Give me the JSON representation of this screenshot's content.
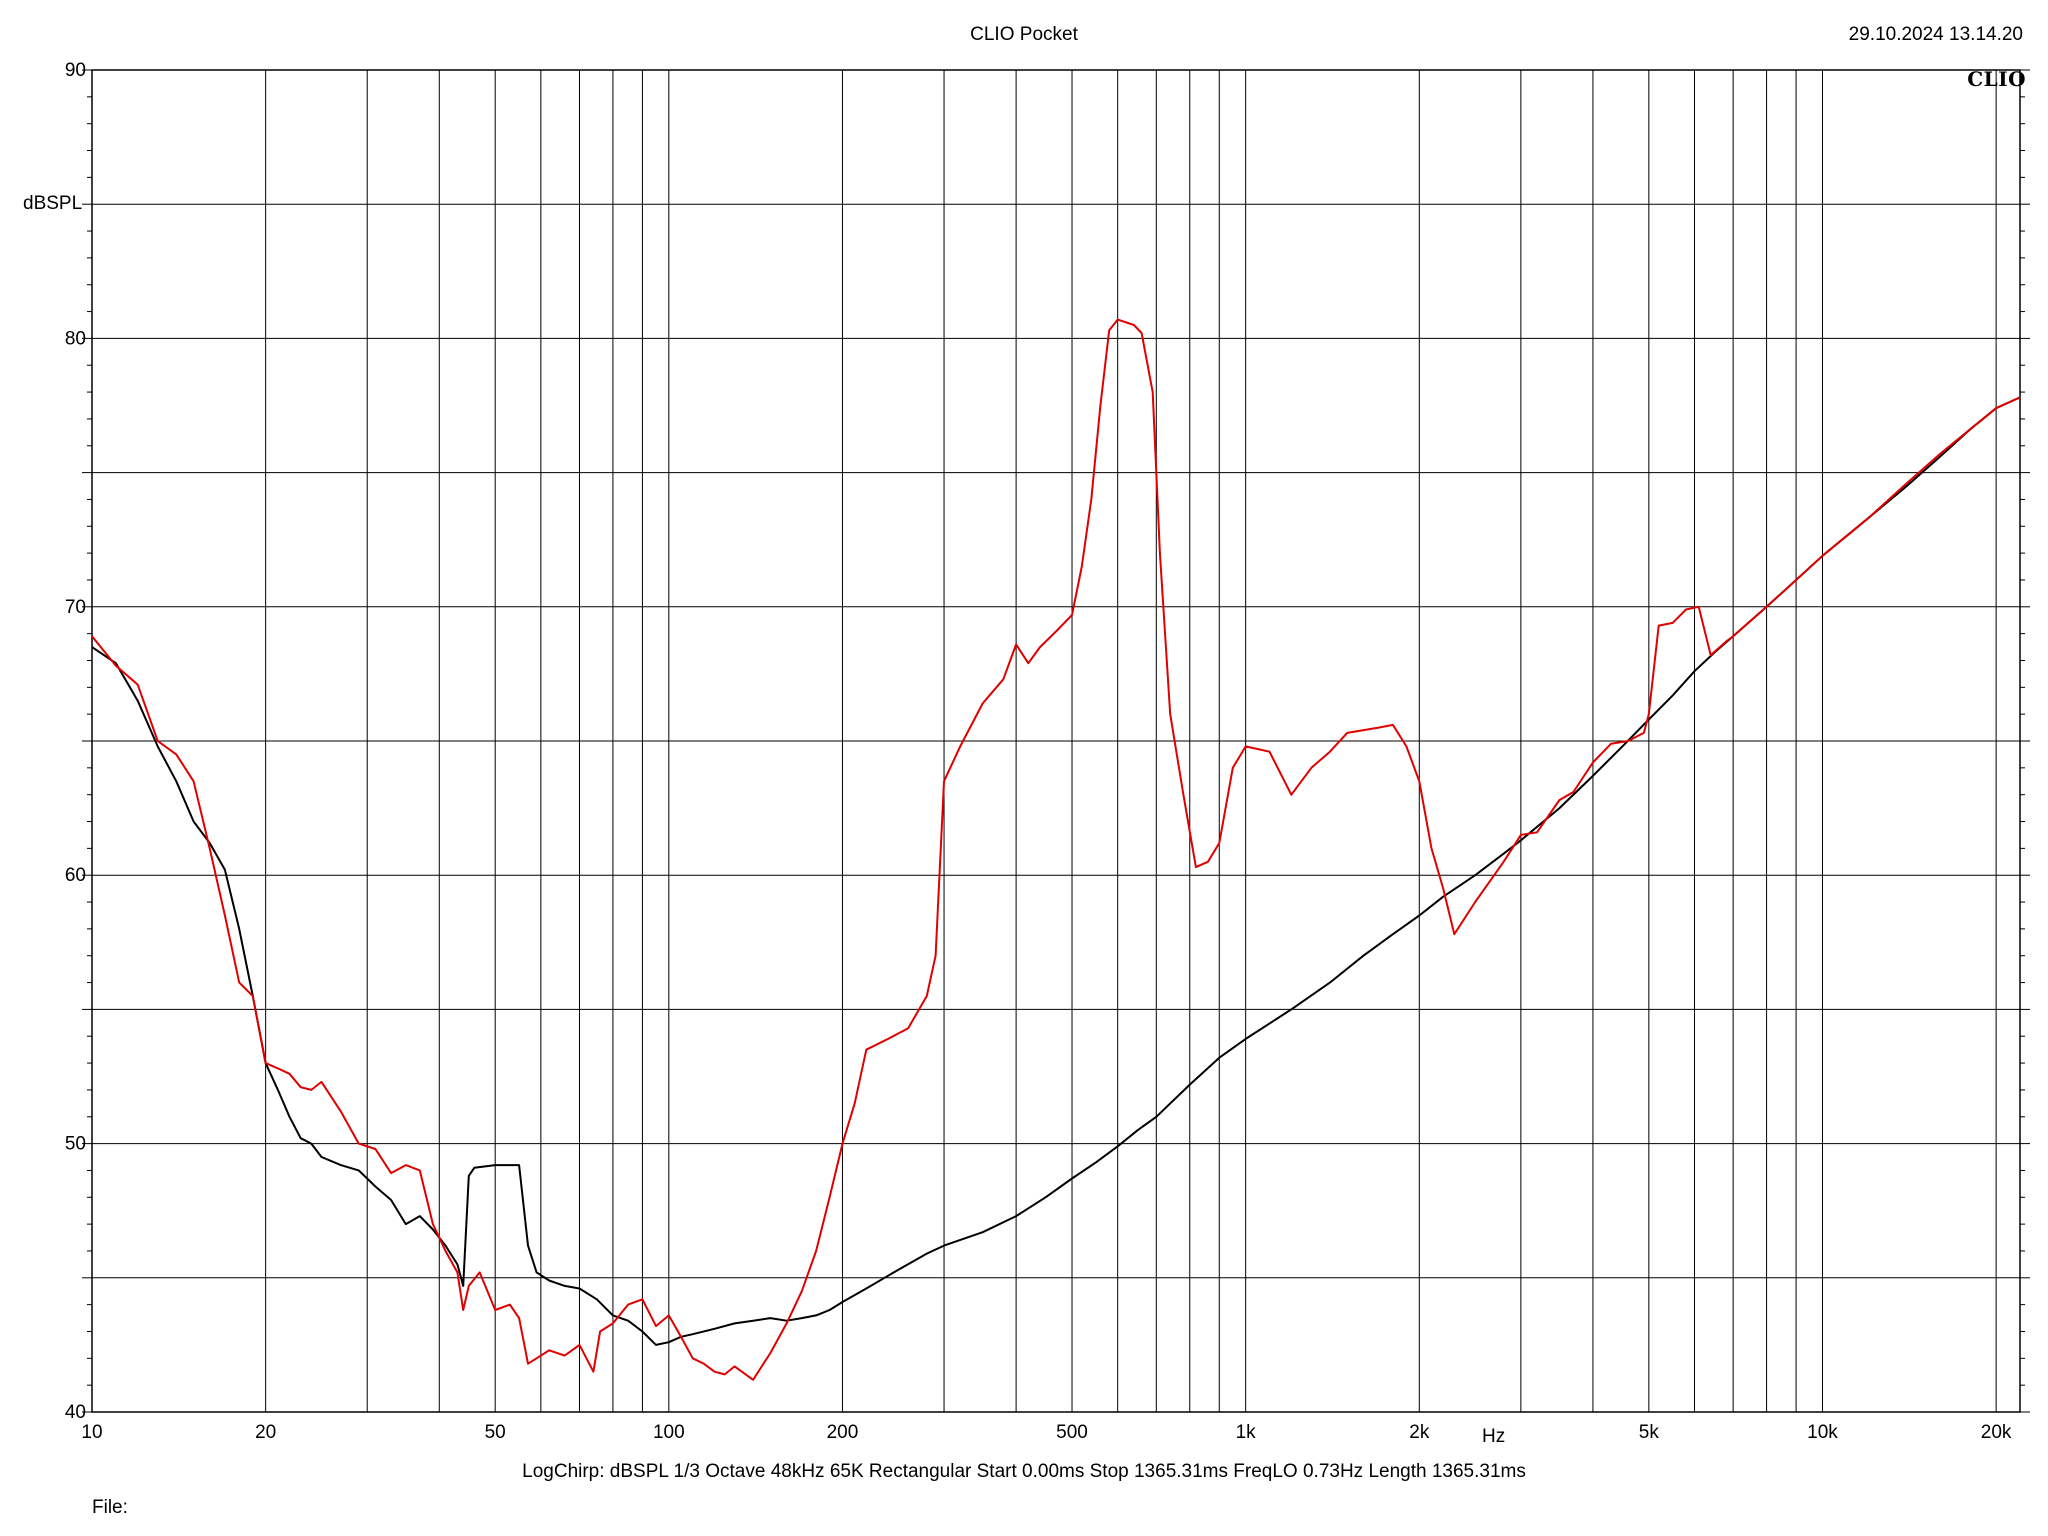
{
  "header": {
    "title": "CLIO Pocket",
    "datetime": "29.10.2024 13.14.20",
    "logo": "CLIO"
  },
  "footer": {
    "settings": "LogChirp:   dBSPL   1/3 Octave   48kHz   65K   Rectangular   Start 0.00ms    Stop 1365.31ms    FreqLO 0.73Hz    Length 1365.31ms",
    "file_label": "File:"
  },
  "chart_data": {
    "type": "line",
    "title": "CLIO Pocket",
    "xlabel": "Hz",
    "ylabel": "dBSPL",
    "x_scale": "log",
    "xlim": [
      10,
      22000
    ],
    "ylim": [
      40,
      90
    ],
    "x_ticks": [
      {
        "value": 10,
        "label": "10"
      },
      {
        "value": 20,
        "label": "20"
      },
      {
        "value": 50,
        "label": "50"
      },
      {
        "value": 100,
        "label": "100"
      },
      {
        "value": 200,
        "label": "200"
      },
      {
        "value": 500,
        "label": "500"
      },
      {
        "value": 1000,
        "label": "1k"
      },
      {
        "value": 2000,
        "label": "2k"
      },
      {
        "value": 5000,
        "label": "5k"
      },
      {
        "value": 10000,
        "label": "10k"
      },
      {
        "value": 20000,
        "label": "20k"
      }
    ],
    "y_ticks": [
      {
        "value": 40,
        "label": "40"
      },
      {
        "value": 50,
        "label": "50"
      },
      {
        "value": 60,
        "label": "60"
      },
      {
        "value": 70,
        "label": "70"
      },
      {
        "value": 80,
        "label": "80"
      },
      {
        "value": 90,
        "label": "90"
      }
    ],
    "grid": true,
    "series": [
      {
        "color": "#000000",
        "points": [
          [
            10,
            68.5
          ],
          [
            11,
            67.9
          ],
          [
            12,
            66.5
          ],
          [
            13,
            64.8
          ],
          [
            14,
            63.5
          ],
          [
            15,
            62.0
          ],
          [
            16,
            61.2
          ],
          [
            17,
            60.2
          ],
          [
            18,
            58.0
          ],
          [
            19,
            55.5
          ],
          [
            20,
            53.0
          ],
          [
            21,
            52.0
          ],
          [
            22,
            51.0
          ],
          [
            23,
            50.2
          ],
          [
            24,
            50.0
          ],
          [
            25,
            49.5
          ],
          [
            27,
            49.2
          ],
          [
            29,
            49.0
          ],
          [
            31,
            48.4
          ],
          [
            33,
            47.9
          ],
          [
            35,
            47.0
          ],
          [
            37,
            47.3
          ],
          [
            39,
            46.8
          ],
          [
            41,
            46.2
          ],
          [
            43,
            45.5
          ],
          [
            44,
            44.7
          ],
          [
            45,
            48.8
          ],
          [
            46,
            49.1
          ],
          [
            50,
            49.2
          ],
          [
            55,
            49.2
          ],
          [
            57,
            46.2
          ],
          [
            59,
            45.2
          ],
          [
            62,
            44.9
          ],
          [
            66,
            44.7
          ],
          [
            70,
            44.6
          ],
          [
            75,
            44.2
          ],
          [
            80,
            43.6
          ],
          [
            85,
            43.4
          ],
          [
            90,
            43.0
          ],
          [
            95,
            42.5
          ],
          [
            100,
            42.6
          ],
          [
            105,
            42.8
          ],
          [
            110,
            42.9
          ],
          [
            120,
            43.1
          ],
          [
            130,
            43.3
          ],
          [
            140,
            43.4
          ],
          [
            150,
            43.5
          ],
          [
            160,
            43.4
          ],
          [
            170,
            43.5
          ],
          [
            180,
            43.6
          ],
          [
            190,
            43.8
          ],
          [
            200,
            44.1
          ],
          [
            220,
            44.6
          ],
          [
            250,
            45.3
          ],
          [
            280,
            45.9
          ],
          [
            300,
            46.2
          ],
          [
            350,
            46.7
          ],
          [
            400,
            47.3
          ],
          [
            450,
            48.0
          ],
          [
            500,
            48.7
          ],
          [
            550,
            49.3
          ],
          [
            600,
            49.9
          ],
          [
            650,
            50.5
          ],
          [
            700,
            51.0
          ],
          [
            800,
            52.2
          ],
          [
            900,
            53.2
          ],
          [
            1000,
            53.9
          ],
          [
            1200,
            55.0
          ],
          [
            1400,
            56.0
          ],
          [
            1600,
            57.0
          ],
          [
            1800,
            57.8
          ],
          [
            2000,
            58.5
          ],
          [
            2200,
            59.2
          ],
          [
            2500,
            60.0
          ],
          [
            2800,
            60.8
          ],
          [
            3000,
            61.3
          ],
          [
            3500,
            62.5
          ],
          [
            4000,
            63.7
          ],
          [
            4500,
            64.8
          ],
          [
            5000,
            65.8
          ],
          [
            5500,
            66.7
          ],
          [
            6000,
            67.6
          ],
          [
            6500,
            68.3
          ],
          [
            7000,
            68.9
          ],
          [
            8000,
            70.0
          ],
          [
            9000,
            71.0
          ],
          [
            10000,
            71.9
          ],
          [
            12000,
            73.3
          ],
          [
            14000,
            74.5
          ],
          [
            16000,
            75.6
          ],
          [
            18000,
            76.6
          ],
          [
            20000,
            77.4
          ],
          [
            22000,
            77.8
          ]
        ]
      },
      {
        "color": "#e00000",
        "points": [
          [
            10,
            68.9
          ],
          [
            11,
            67.8
          ],
          [
            12,
            67.1
          ],
          [
            13,
            65.0
          ],
          [
            14,
            64.5
          ],
          [
            15,
            63.5
          ],
          [
            16,
            61.0
          ],
          [
            17,
            58.5
          ],
          [
            18,
            56.0
          ],
          [
            19,
            55.5
          ],
          [
            20,
            53.0
          ],
          [
            21,
            52.8
          ],
          [
            22,
            52.6
          ],
          [
            23,
            52.1
          ],
          [
            24,
            52.0
          ],
          [
            25,
            52.3
          ],
          [
            27,
            51.2
          ],
          [
            29,
            50.0
          ],
          [
            31,
            49.8
          ],
          [
            33,
            48.9
          ],
          [
            35,
            49.2
          ],
          [
            37,
            49.0
          ],
          [
            39,
            47.0
          ],
          [
            41,
            46.0
          ],
          [
            43,
            45.2
          ],
          [
            44,
            43.8
          ],
          [
            45,
            44.7
          ],
          [
            47,
            45.2
          ],
          [
            50,
            43.8
          ],
          [
            53,
            44.0
          ],
          [
            55,
            43.5
          ],
          [
            57,
            41.8
          ],
          [
            59,
            42.0
          ],
          [
            62,
            42.3
          ],
          [
            66,
            42.1
          ],
          [
            70,
            42.5
          ],
          [
            74,
            41.5
          ],
          [
            76,
            43.0
          ],
          [
            80,
            43.3
          ],
          [
            85,
            44.0
          ],
          [
            90,
            44.2
          ],
          [
            95,
            43.2
          ],
          [
            100,
            43.6
          ],
          [
            105,
            42.8
          ],
          [
            110,
            42.0
          ],
          [
            115,
            41.8
          ],
          [
            120,
            41.5
          ],
          [
            125,
            41.4
          ],
          [
            130,
            41.7
          ],
          [
            140,
            41.2
          ],
          [
            150,
            42.2
          ],
          [
            160,
            43.3
          ],
          [
            170,
            44.5
          ],
          [
            180,
            46.0
          ],
          [
            190,
            48.0
          ],
          [
            200,
            50.0
          ],
          [
            210,
            51.5
          ],
          [
            220,
            53.5
          ],
          [
            240,
            53.9
          ],
          [
            260,
            54.3
          ],
          [
            280,
            55.5
          ],
          [
            290,
            57.0
          ],
          [
            300,
            63.5
          ],
          [
            320,
            64.8
          ],
          [
            350,
            66.4
          ],
          [
            380,
            67.3
          ],
          [
            400,
            68.6
          ],
          [
            420,
            67.9
          ],
          [
            440,
            68.5
          ],
          [
            470,
            69.1
          ],
          [
            500,
            69.7
          ],
          [
            520,
            71.5
          ],
          [
            540,
            74.0
          ],
          [
            560,
            77.5
          ],
          [
            580,
            80.3
          ],
          [
            600,
            80.7
          ],
          [
            640,
            80.5
          ],
          [
            660,
            80.2
          ],
          [
            690,
            78.0
          ],
          [
            710,
            72.0
          ],
          [
            740,
            66.0
          ],
          [
            780,
            63.0
          ],
          [
            820,
            60.3
          ],
          [
            860,
            60.5
          ],
          [
            900,
            61.2
          ],
          [
            950,
            64.0
          ],
          [
            1000,
            64.8
          ],
          [
            1100,
            64.6
          ],
          [
            1200,
            63.0
          ],
          [
            1300,
            64.0
          ],
          [
            1400,
            64.6
          ],
          [
            1500,
            65.3
          ],
          [
            1700,
            65.5
          ],
          [
            1800,
            65.6
          ],
          [
            1900,
            64.8
          ],
          [
            2000,
            63.5
          ],
          [
            2100,
            61.0
          ],
          [
            2200,
            59.5
          ],
          [
            2300,
            57.8
          ],
          [
            2500,
            59.0
          ],
          [
            2800,
            60.5
          ],
          [
            3000,
            61.5
          ],
          [
            3200,
            61.6
          ],
          [
            3500,
            62.8
          ],
          [
            3700,
            63.1
          ],
          [
            4000,
            64.2
          ],
          [
            4300,
            64.9
          ],
          [
            4600,
            65.0
          ],
          [
            4900,
            65.3
          ],
          [
            5000,
            66.0
          ],
          [
            5200,
            69.3
          ],
          [
            5500,
            69.4
          ],
          [
            5800,
            69.9
          ],
          [
            6100,
            70.0
          ],
          [
            6400,
            68.2
          ],
          [
            6800,
            68.7
          ],
          [
            7000,
            68.9
          ],
          [
            8000,
            70.0
          ],
          [
            9000,
            71.0
          ],
          [
            10000,
            71.9
          ],
          [
            12000,
            73.3
          ],
          [
            14000,
            74.6
          ],
          [
            16000,
            75.7
          ],
          [
            18000,
            76.6
          ],
          [
            20000,
            77.4
          ],
          [
            22000,
            77.8
          ]
        ]
      }
    ]
  }
}
